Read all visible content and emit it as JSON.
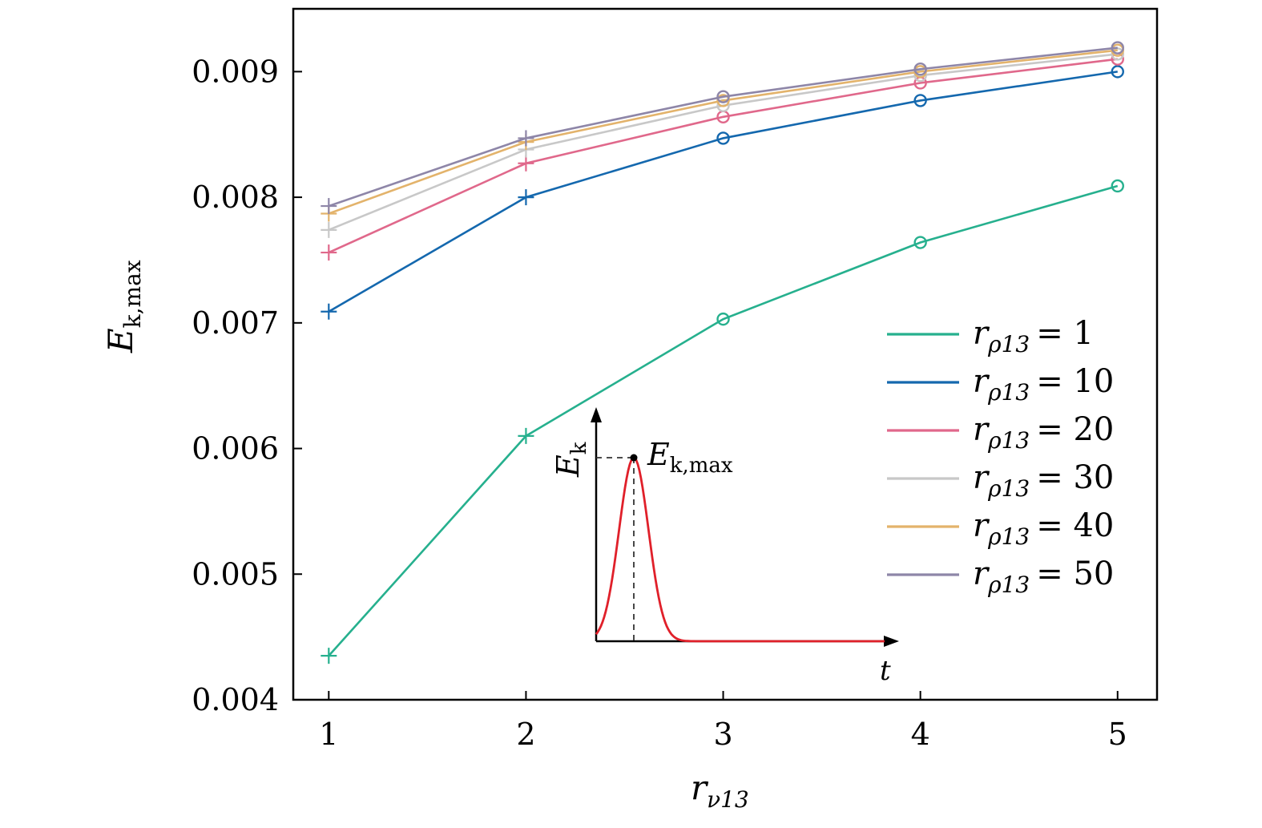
{
  "chart_data": {
    "type": "line",
    "x": [
      1,
      2,
      3,
      4,
      5
    ],
    "xticks": [
      "1",
      "2",
      "3",
      "4",
      "5"
    ],
    "yticks": [
      "0.004",
      "0.005",
      "0.006",
      "0.007",
      "0.008",
      "0.009"
    ],
    "ytick_values": [
      0.004,
      0.005,
      0.006,
      0.007,
      0.008,
      0.009
    ],
    "xlim": [
      0.82,
      5.2
    ],
    "ylim": [
      0.004,
      0.0095
    ],
    "xlabel": {
      "main": "r",
      "sub": "ν13"
    },
    "ylabel": {
      "main": "E",
      "sub": "k,max"
    },
    "grid": false,
    "legend_position": "right",
    "markers": "plus for r_ν13 = 1, 2; circle for r_ν13 = 3, 4, 5",
    "series": [
      {
        "name": "r_ρ13 = 1",
        "legend": {
          "main": "r",
          "sub": "ρ13",
          "value": "= 1"
        },
        "color": "#26b08e",
        "values": [
          0.00435,
          0.0061,
          0.00703,
          0.00764,
          0.00809
        ]
      },
      {
        "name": "r_ρ13 = 10",
        "legend": {
          "main": "r",
          "sub": "ρ13",
          "value": "= 10"
        },
        "color": "#1468ae",
        "values": [
          0.00709,
          0.008,
          0.00847,
          0.00877,
          0.009
        ]
      },
      {
        "name": "r_ρ13 = 20",
        "legend": {
          "main": "r",
          "sub": "ρ13",
          "value": "= 20"
        },
        "color": "#e0688b",
        "values": [
          0.00756,
          0.00827,
          0.00864,
          0.00891,
          0.0091
        ]
      },
      {
        "name": "r_ρ13 = 30",
        "legend": {
          "main": "r",
          "sub": "ρ13",
          "value": "= 30"
        },
        "color": "#c8c8c8",
        "values": [
          0.00774,
          0.00838,
          0.00873,
          0.00897,
          0.00914
        ]
      },
      {
        "name": "r_ρ13 = 40",
        "legend": {
          "main": "r",
          "sub": "ρ13",
          "value": "= 40"
        },
        "color": "#e3b36b",
        "values": [
          0.00787,
          0.00844,
          0.00877,
          0.009,
          0.00917
        ]
      },
      {
        "name": "r_ρ13 = 50",
        "legend": {
          "main": "r",
          "sub": "ρ13",
          "value": "= 50"
        },
        "color": "#8e86a8",
        "values": [
          0.00793,
          0.00847,
          0.0088,
          0.00902,
          0.00919
        ]
      }
    ],
    "inset": {
      "description": "schematic of E_k over time with peak E_k,max",
      "ylabel": {
        "main": "E",
        "sub": "k"
      },
      "xlabel": "t",
      "peak_label": {
        "main": "E",
        "sub": "k,max"
      },
      "curve_color": "#e0202a"
    }
  }
}
